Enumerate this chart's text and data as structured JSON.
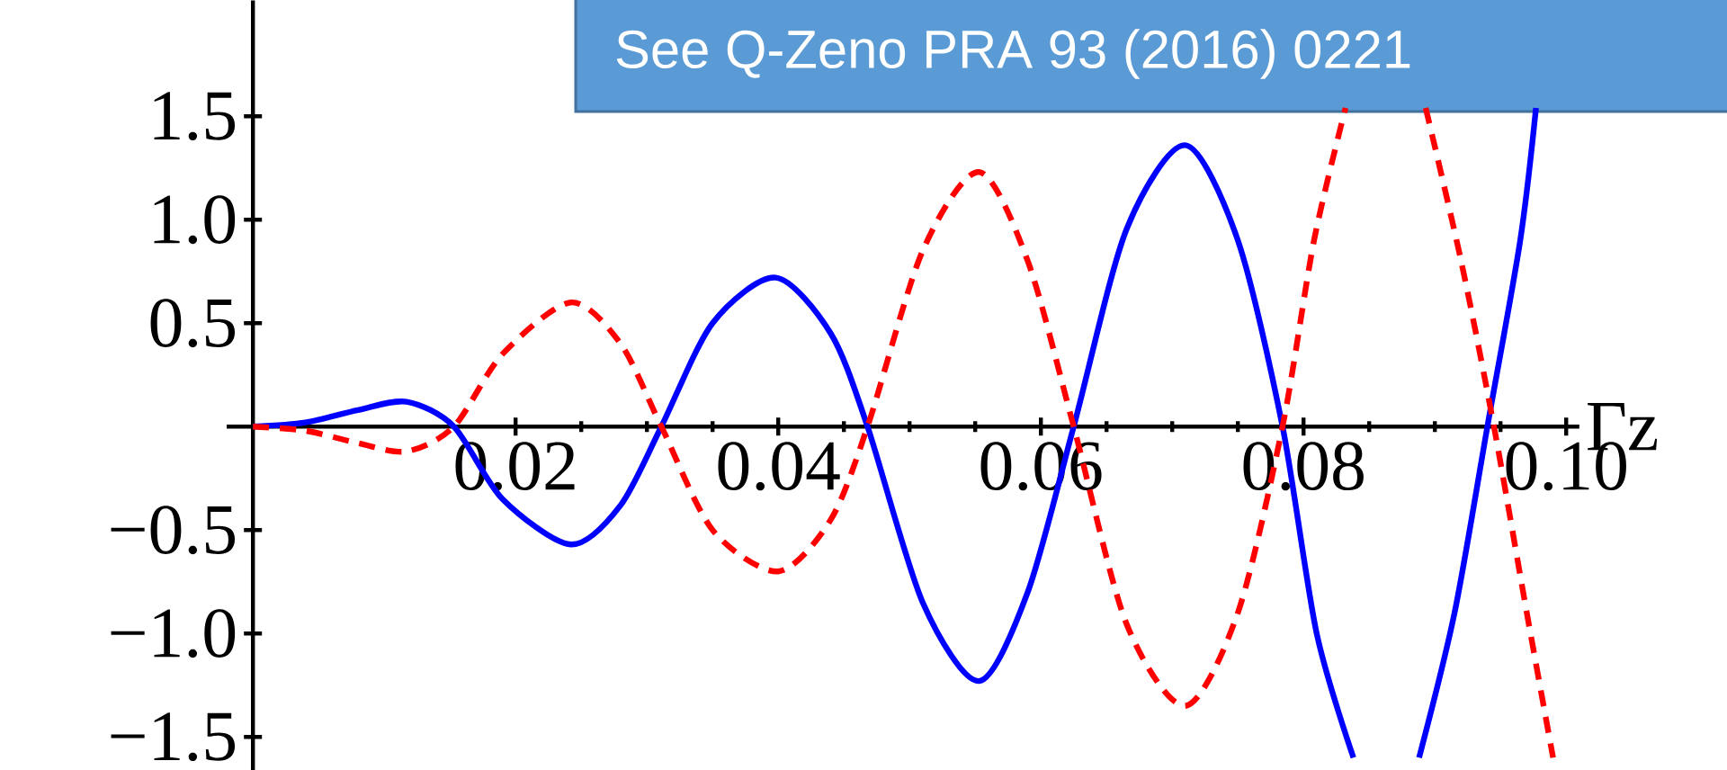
{
  "chart_data": {
    "type": "line",
    "xlabel": "Γz",
    "xlim": [
      -0.002,
      0.101
    ],
    "ylim": [
      -1.66,
      2.06
    ],
    "xticks": [
      {
        "value": 0.02,
        "label": "0.02"
      },
      {
        "value": 0.04,
        "label": "0.04"
      },
      {
        "value": 0.06,
        "label": "0.06"
      },
      {
        "value": 0.08,
        "label": "0.08"
      },
      {
        "value": 0.1,
        "label": "0.10"
      }
    ],
    "yticks": [
      {
        "value": -1.5,
        "label": "−1.5"
      },
      {
        "value": -1.0,
        "label": "−1.0"
      },
      {
        "value": -0.5,
        "label": "−0.5"
      },
      {
        "value": 0.5,
        "label": "0.5"
      },
      {
        "value": 1.0,
        "label": "1.0"
      },
      {
        "value": 1.5,
        "label": "1.5"
      }
    ],
    "annotations": [
      "See Q-Zeno PRA 93 (2016) 0221"
    ],
    "series": [
      {
        "color": "#0000ff",
        "line_style": "solid",
        "x": [
          0,
          0.004,
          0.008,
          0.0117,
          0.0153,
          0.019,
          0.0242,
          0.028,
          0.0311,
          0.035,
          0.0398,
          0.044,
          0.0468,
          0.051,
          0.0553,
          0.059,
          0.0625,
          0.0665,
          0.071,
          0.075,
          0.0784,
          0.081,
          0.0838,
          0.0865,
          0.0888,
          0.0915,
          0.094,
          0.0965,
          0.0977
        ],
        "values": [
          0,
          0.02,
          0.08,
          0.12,
          0,
          -0.35,
          -0.57,
          -0.38,
          0,
          0.5,
          0.72,
          0.45,
          0,
          -0.85,
          -1.23,
          -0.8,
          0,
          0.95,
          1.36,
          0.9,
          0,
          -1.0,
          -1.6,
          null,
          -1.6,
          -0.9,
          0,
          0.9,
          1.54
        ]
      },
      {
        "color": "#ff0000",
        "line_style": "dashed",
        "x": [
          0,
          0.004,
          0.008,
          0.0117,
          0.0153,
          0.019,
          0.0242,
          0.028,
          0.0311,
          0.035,
          0.04,
          0.044,
          0.0468,
          0.051,
          0.0553,
          0.059,
          0.0625,
          0.0665,
          0.071,
          0.075,
          0.0784,
          0.0808,
          0.0832,
          0.086,
          0.0893,
          0.092,
          0.0945,
          0.097,
          0.099
        ],
        "values": [
          0,
          -0.02,
          -0.08,
          -0.12,
          0,
          0.35,
          0.6,
          0.4,
          0,
          -0.5,
          -0.7,
          -0.45,
          0,
          0.85,
          1.23,
          0.8,
          0,
          -0.95,
          -1.35,
          -0.9,
          0,
          0.9,
          1.54,
          null,
          1.54,
          0.8,
          0,
          -0.9,
          -1.6
        ]
      }
    ]
  }
}
